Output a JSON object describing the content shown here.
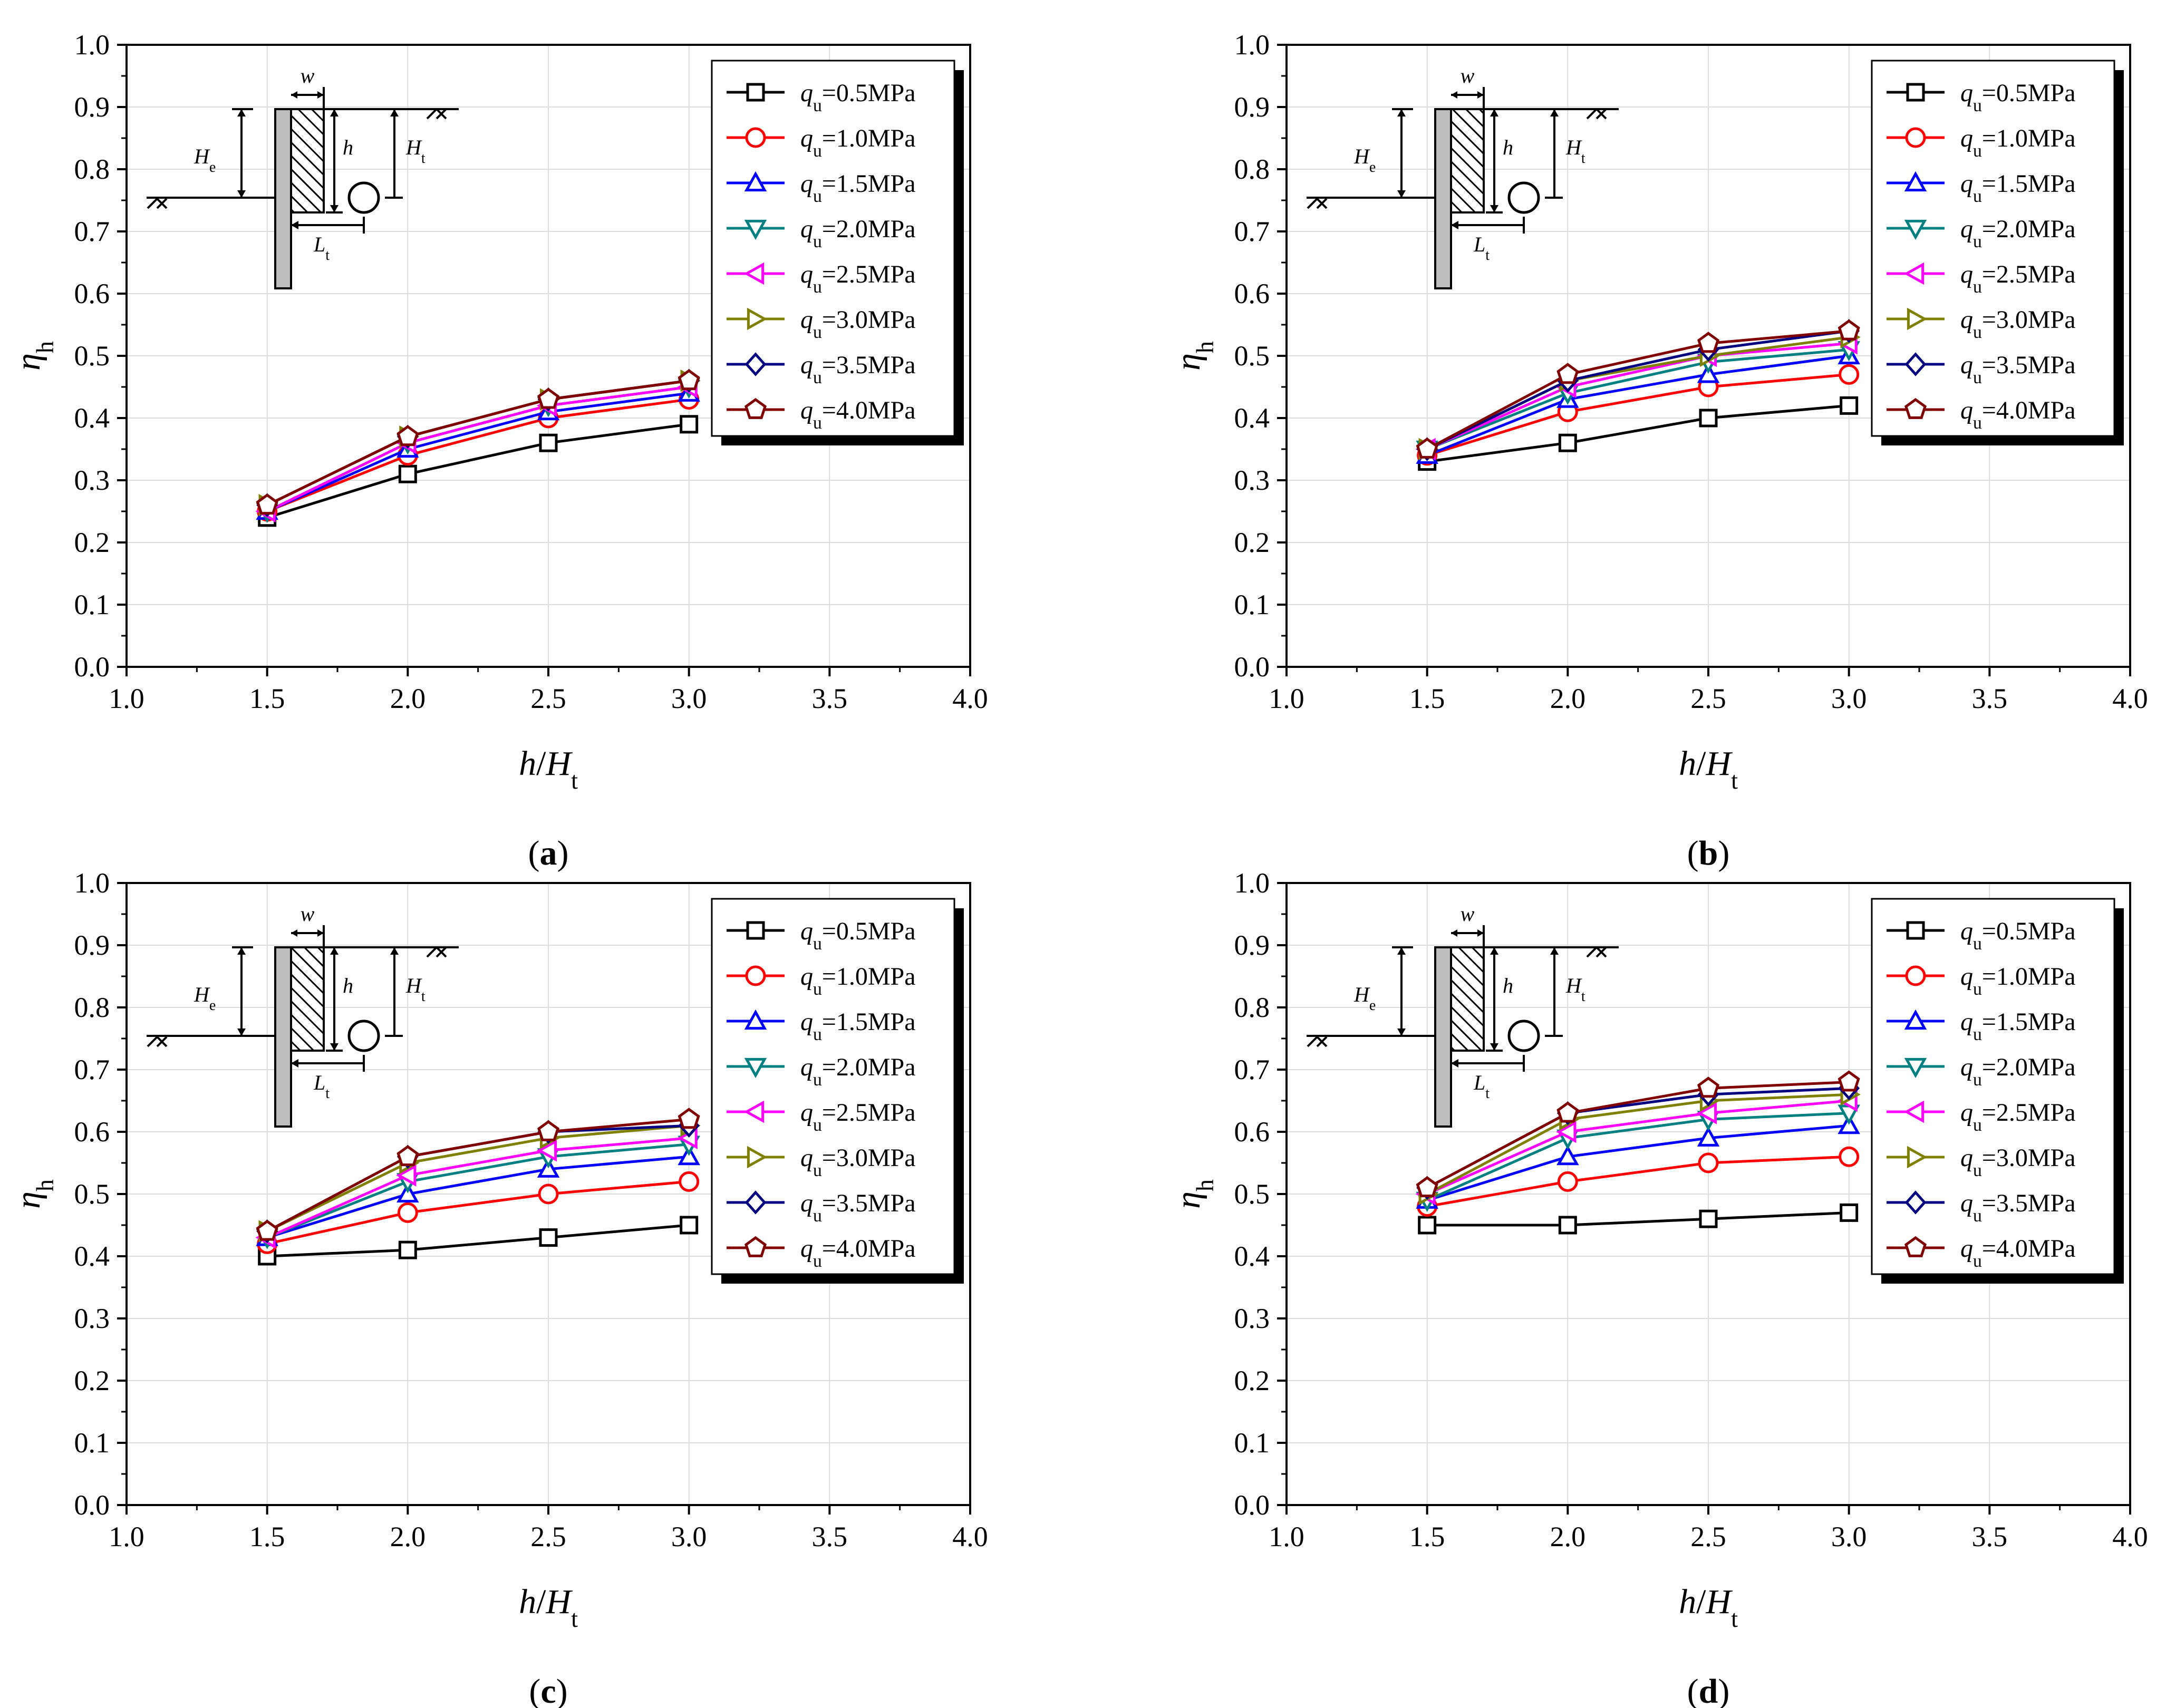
{
  "figure": {
    "panels": [
      "a",
      "b",
      "c",
      "d"
    ]
  },
  "chart_data": [
    {
      "panel": "a",
      "label": "(a)",
      "type": "line",
      "x": [
        1.5,
        2.0,
        2.5,
        3.0
      ],
      "xlabel": "h/Ht",
      "ylabel": "ηh",
      "xlim": [
        1.0,
        4.0
      ],
      "ylim": [
        0.0,
        1.0
      ],
      "xticks": [
        "1.0",
        "1.5",
        "2.0",
        "2.5",
        "3.0",
        "3.5",
        "4.0"
      ],
      "yticks": [
        "0.0",
        "0.1",
        "0.2",
        "0.3",
        "0.4",
        "0.5",
        "0.6",
        "0.7",
        "0.8",
        "0.9",
        "1.0"
      ],
      "grid": true,
      "legend_position": "top-right",
      "series": [
        {
          "name": "qu=0.5MPa",
          "label_main": "q",
          "label_sub": "u",
          "label_rest": "=0.5MPa",
          "color": "#000000",
          "marker": "square",
          "values": [
            0.24,
            0.31,
            0.36,
            0.39
          ]
        },
        {
          "name": "qu=1.0MPa",
          "label_main": "q",
          "label_sub": "u",
          "label_rest": "=1.0MPa",
          "color": "#ff0000",
          "marker": "circle",
          "values": [
            0.25,
            0.34,
            0.4,
            0.43
          ]
        },
        {
          "name": "qu=1.5MPa",
          "label_main": "q",
          "label_sub": "u",
          "label_rest": "=1.5MPa",
          "color": "#0000ff",
          "marker": "triangle-up",
          "values": [
            0.25,
            0.35,
            0.41,
            0.44
          ]
        },
        {
          "name": "qu=2.0MPa",
          "label_main": "q",
          "label_sub": "u",
          "label_rest": "=2.0MPa",
          "color": "#008080",
          "marker": "triangle-down",
          "values": [
            0.25,
            0.36,
            0.42,
            0.45
          ]
        },
        {
          "name": "qu=2.5MPa",
          "label_main": "q",
          "label_sub": "u",
          "label_rest": "=2.5MPa",
          "color": "#ff00ff",
          "marker": "triangle-left",
          "values": [
            0.25,
            0.36,
            0.42,
            0.45
          ]
        },
        {
          "name": "qu=3.0MPa",
          "label_main": "q",
          "label_sub": "u",
          "label_rest": "=3.0MPa",
          "color": "#808000",
          "marker": "triangle-right",
          "values": [
            0.26,
            0.37,
            0.43,
            0.46
          ]
        },
        {
          "name": "qu=3.5MPa",
          "label_main": "q",
          "label_sub": "u",
          "label_rest": "=3.5MPa",
          "color": "#000080",
          "marker": "diamond",
          "values": [
            0.26,
            0.37,
            0.43,
            0.46
          ]
        },
        {
          "name": "qu=4.0MPa",
          "label_main": "q",
          "label_sub": "u",
          "label_rest": "=4.0MPa",
          "color": "#800000",
          "marker": "pentagon",
          "values": [
            0.26,
            0.37,
            0.43,
            0.46
          ]
        }
      ]
    },
    {
      "panel": "b",
      "label": "(b)",
      "type": "line",
      "x": [
        1.5,
        2.0,
        2.5,
        3.0
      ],
      "xlabel": "h/Ht",
      "ylabel": "ηh",
      "xlim": [
        1.0,
        4.0
      ],
      "ylim": [
        0.0,
        1.0
      ],
      "xticks": [
        "1.0",
        "1.5",
        "2.0",
        "2.5",
        "3.0",
        "3.5",
        "4.0"
      ],
      "yticks": [
        "0.0",
        "0.1",
        "0.2",
        "0.3",
        "0.4",
        "0.5",
        "0.6",
        "0.7",
        "0.8",
        "0.9",
        "1.0"
      ],
      "grid": true,
      "legend_position": "top-right",
      "series": [
        {
          "name": "qu=0.5MPa",
          "label_main": "q",
          "label_sub": "u",
          "label_rest": "=0.5MPa",
          "color": "#000000",
          "marker": "square",
          "values": [
            0.33,
            0.36,
            0.4,
            0.42
          ]
        },
        {
          "name": "qu=1.0MPa",
          "label_main": "q",
          "label_sub": "u",
          "label_rest": "=1.0MPa",
          "color": "#ff0000",
          "marker": "circle",
          "values": [
            0.34,
            0.41,
            0.45,
            0.47
          ]
        },
        {
          "name": "qu=1.5MPa",
          "label_main": "q",
          "label_sub": "u",
          "label_rest": "=1.5MPa",
          "color": "#0000ff",
          "marker": "triangle-up",
          "values": [
            0.34,
            0.43,
            0.47,
            0.5
          ]
        },
        {
          "name": "qu=2.0MPa",
          "label_main": "q",
          "label_sub": "u",
          "label_rest": "=2.0MPa",
          "color": "#008080",
          "marker": "triangle-down",
          "values": [
            0.35,
            0.44,
            0.49,
            0.51
          ]
        },
        {
          "name": "qu=2.5MPa",
          "label_main": "q",
          "label_sub": "u",
          "label_rest": "=2.5MPa",
          "color": "#ff00ff",
          "marker": "triangle-left",
          "values": [
            0.35,
            0.45,
            0.5,
            0.52
          ]
        },
        {
          "name": "qu=3.0MPa",
          "label_main": "q",
          "label_sub": "u",
          "label_rest": "=3.0MPa",
          "color": "#808000",
          "marker": "triangle-right",
          "values": [
            0.35,
            0.46,
            0.5,
            0.53
          ]
        },
        {
          "name": "qu=3.5MPa",
          "label_main": "q",
          "label_sub": "u",
          "label_rest": "=3.5MPa",
          "color": "#000080",
          "marker": "diamond",
          "values": [
            0.35,
            0.46,
            0.51,
            0.54
          ]
        },
        {
          "name": "qu=4.0MPa",
          "label_main": "q",
          "label_sub": "u",
          "label_rest": "=4.0MPa",
          "color": "#800000",
          "marker": "pentagon",
          "values": [
            0.35,
            0.47,
            0.52,
            0.54
          ]
        }
      ]
    },
    {
      "panel": "c",
      "label": "(c)",
      "type": "line",
      "x": [
        1.5,
        2.0,
        2.5,
        3.0
      ],
      "xlabel": "h/Ht",
      "ylabel": "ηh",
      "xlim": [
        1.0,
        4.0
      ],
      "ylim": [
        0.0,
        1.0
      ],
      "xticks": [
        "1.0",
        "1.5",
        "2.0",
        "2.5",
        "3.0",
        "3.5",
        "4.0"
      ],
      "yticks": [
        "0.0",
        "0.1",
        "0.2",
        "0.3",
        "0.4",
        "0.5",
        "0.6",
        "0.7",
        "0.8",
        "0.9",
        "1.0"
      ],
      "grid": true,
      "legend_position": "top-right",
      "series": [
        {
          "name": "qu=0.5MPa",
          "label_main": "q",
          "label_sub": "u",
          "label_rest": "=0.5MPa",
          "color": "#000000",
          "marker": "square",
          "values": [
            0.4,
            0.41,
            0.43,
            0.45
          ]
        },
        {
          "name": "qu=1.0MPa",
          "label_main": "q",
          "label_sub": "u",
          "label_rest": "=1.0MPa",
          "color": "#ff0000",
          "marker": "circle",
          "values": [
            0.42,
            0.47,
            0.5,
            0.52
          ]
        },
        {
          "name": "qu=1.5MPa",
          "label_main": "q",
          "label_sub": "u",
          "label_rest": "=1.5MPa",
          "color": "#0000ff",
          "marker": "triangle-up",
          "values": [
            0.43,
            0.5,
            0.54,
            0.56
          ]
        },
        {
          "name": "qu=2.0MPa",
          "label_main": "q",
          "label_sub": "u",
          "label_rest": "=2.0MPa",
          "color": "#008080",
          "marker": "triangle-down",
          "values": [
            0.43,
            0.52,
            0.56,
            0.58
          ]
        },
        {
          "name": "qu=2.5MPa",
          "label_main": "q",
          "label_sub": "u",
          "label_rest": "=2.5MPa",
          "color": "#ff00ff",
          "marker": "triangle-left",
          "values": [
            0.43,
            0.53,
            0.57,
            0.59
          ]
        },
        {
          "name": "qu=3.0MPa",
          "label_main": "q",
          "label_sub": "u",
          "label_rest": "=3.0MPa",
          "color": "#808000",
          "marker": "triangle-right",
          "values": [
            0.44,
            0.55,
            0.59,
            0.61
          ]
        },
        {
          "name": "qu=3.5MPa",
          "label_main": "q",
          "label_sub": "u",
          "label_rest": "=3.5MPa",
          "color": "#000080",
          "marker": "diamond",
          "values": [
            0.44,
            0.56,
            0.6,
            0.61
          ]
        },
        {
          "name": "qu=4.0MPa",
          "label_main": "q",
          "label_sub": "u",
          "label_rest": "=4.0MPa",
          "color": "#800000",
          "marker": "pentagon",
          "values": [
            0.44,
            0.56,
            0.6,
            0.62
          ]
        }
      ]
    },
    {
      "panel": "d",
      "label": "(d)",
      "type": "line",
      "x": [
        1.5,
        2.0,
        2.5,
        3.0
      ],
      "xlabel": "h/Ht",
      "ylabel": "ηh",
      "xlim": [
        1.0,
        4.0
      ],
      "ylim": [
        0.0,
        1.0
      ],
      "xticks": [
        "1.0",
        "1.5",
        "2.0",
        "2.5",
        "3.0",
        "3.5",
        "4.0"
      ],
      "yticks": [
        "0.0",
        "0.1",
        "0.2",
        "0.3",
        "0.4",
        "0.5",
        "0.6",
        "0.7",
        "0.8",
        "0.9",
        "1.0"
      ],
      "grid": true,
      "legend_position": "top-right",
      "series": [
        {
          "name": "qu=0.5MPa",
          "label_main": "q",
          "label_sub": "u",
          "label_rest": "=0.5MPa",
          "color": "#000000",
          "marker": "square",
          "values": [
            0.45,
            0.45,
            0.46,
            0.47
          ]
        },
        {
          "name": "qu=1.0MPa",
          "label_main": "q",
          "label_sub": "u",
          "label_rest": "=1.0MPa",
          "color": "#ff0000",
          "marker": "circle",
          "values": [
            0.48,
            0.52,
            0.55,
            0.56
          ]
        },
        {
          "name": "qu=1.5MPa",
          "label_main": "q",
          "label_sub": "u",
          "label_rest": "=1.5MPa",
          "color": "#0000ff",
          "marker": "triangle-up",
          "values": [
            0.49,
            0.56,
            0.59,
            0.61
          ]
        },
        {
          "name": "qu=2.0MPa",
          "label_main": "q",
          "label_sub": "u",
          "label_rest": "=2.0MPa",
          "color": "#008080",
          "marker": "triangle-down",
          "values": [
            0.49,
            0.59,
            0.62,
            0.63
          ]
        },
        {
          "name": "qu=2.5MPa",
          "label_main": "q",
          "label_sub": "u",
          "label_rest": "=2.5MPa",
          "color": "#ff00ff",
          "marker": "triangle-left",
          "values": [
            0.5,
            0.6,
            0.63,
            0.65
          ]
        },
        {
          "name": "qu=3.0MPa",
          "label_main": "q",
          "label_sub": "u",
          "label_rest": "=3.0MPa",
          "color": "#808000",
          "marker": "triangle-right",
          "values": [
            0.5,
            0.62,
            0.65,
            0.66
          ]
        },
        {
          "name": "qu=3.5MPa",
          "label_main": "q",
          "label_sub": "u",
          "label_rest": "=3.5MPa",
          "color": "#000080",
          "marker": "diamond",
          "values": [
            0.51,
            0.63,
            0.66,
            0.67
          ]
        },
        {
          "name": "qu=4.0MPa",
          "label_main": "q",
          "label_sub": "u",
          "label_rest": "=4.0MPa",
          "color": "#800000",
          "marker": "pentagon",
          "values": [
            0.51,
            0.63,
            0.67,
            0.68
          ]
        }
      ]
    }
  ],
  "sketch": {
    "w_label": "w",
    "he_main": "H",
    "he_sub": "e",
    "h_label": "h",
    "ht_main": "H",
    "ht_sub": "t",
    "lt_main": "L",
    "lt_sub": "t"
  }
}
